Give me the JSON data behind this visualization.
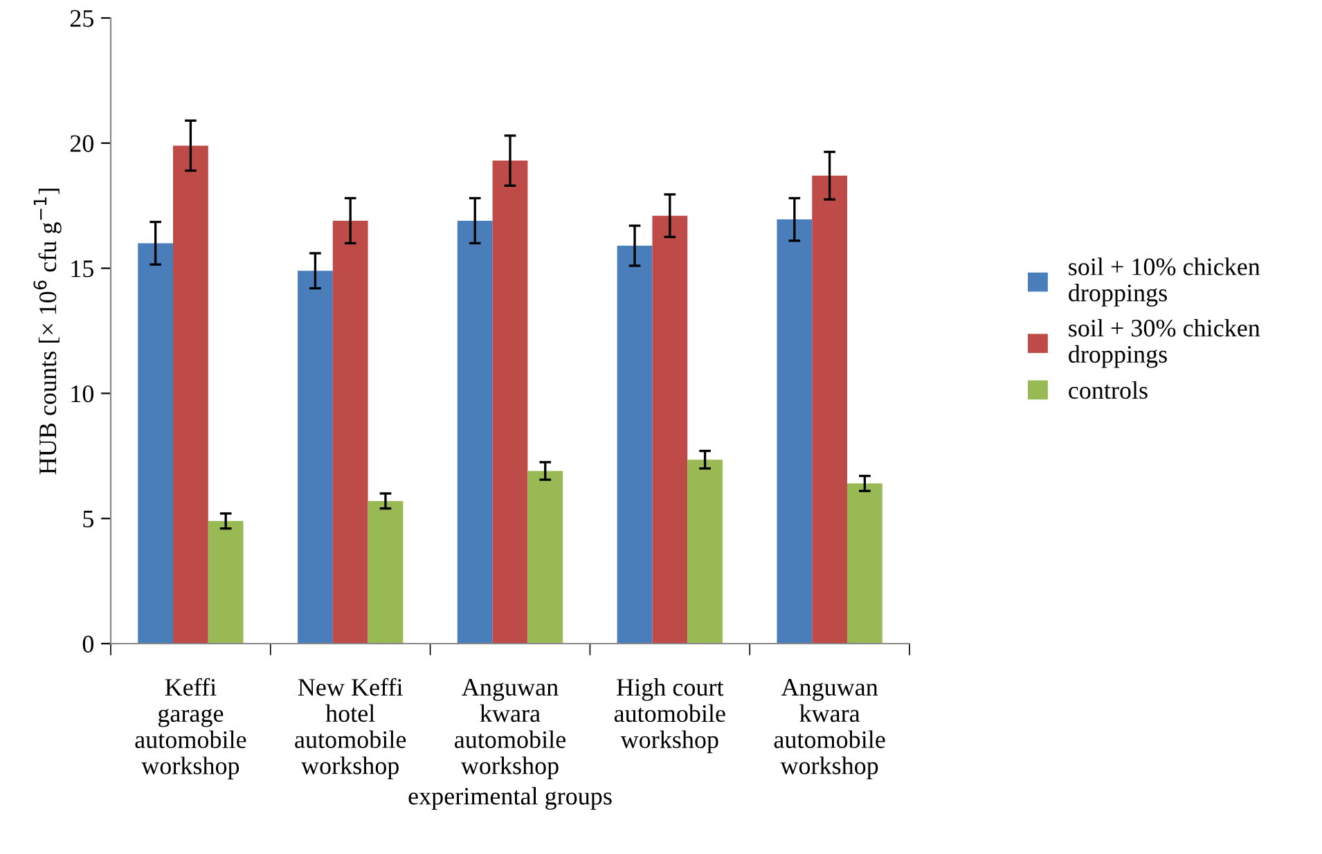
{
  "chart_data": {
    "type": "bar",
    "xlabel": "experimental groups",
    "ylabel": "HUB counts [× 10$^{6}$ cfu g$^{−1}$]",
    "categories": [
      "Keffi garage automobile workshop",
      "New Keffi hotel automobile workshop",
      "Anguwan kwara automobile workshop",
      "High court automobile workshop",
      "Anguwan kwara automobile workshop"
    ],
    "series": [
      {
        "name": "soil + 10% chicken droppings",
        "color": "#4a7ebb",
        "values": [
          16.0,
          14.9,
          16.9,
          15.9,
          16.95
        ],
        "errors": [
          0.85,
          0.7,
          0.9,
          0.8,
          0.85
        ]
      },
      {
        "name": "soil + 30% chicken droppings",
        "color": "#be4b48",
        "values": [
          19.9,
          16.9,
          19.3,
          17.1,
          18.7
        ],
        "errors": [
          1.0,
          0.9,
          1.0,
          0.85,
          0.95
        ]
      },
      {
        "name": "controls",
        "color": "#98b954",
        "values": [
          4.9,
          5.7,
          6.9,
          7.35,
          6.4
        ],
        "errors": [
          0.3,
          0.3,
          0.35,
          0.35,
          0.3
        ]
      }
    ],
    "ylim": [
      0,
      25
    ],
    "yticks": [
      0,
      5,
      10,
      15,
      20,
      25
    ],
    "grid": false,
    "legend": "right"
  }
}
